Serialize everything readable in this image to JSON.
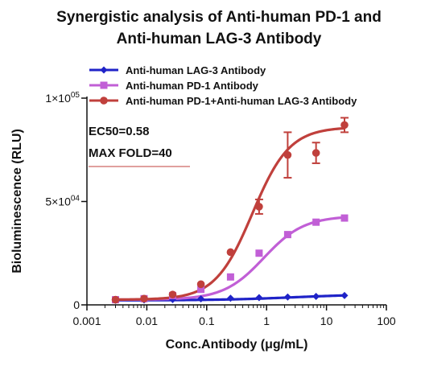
{
  "chart_data": {
    "type": "line",
    "title_lines": [
      "Synergistic analysis of Anti-human PD-1 and",
      "Anti-human LAG-3 Antibody"
    ],
    "xlabel": "Conc.Antibody (μg/mL)",
    "ylabel": "Bioluminescence (RLU)",
    "x_scale": "log",
    "xlim": [
      0.001,
      100
    ],
    "ylim": [
      0,
      100000
    ],
    "x_ticks": [
      {
        "value": 0.001,
        "label": "0.001"
      },
      {
        "value": 0.01,
        "label": "0.01"
      },
      {
        "value": 0.1,
        "label": "0.1"
      },
      {
        "value": 1,
        "label": "1"
      },
      {
        "value": 10,
        "label": "10"
      },
      {
        "value": 100,
        "label": "100"
      }
    ],
    "y_ticks": [
      {
        "value": 0,
        "base": "0",
        "exp": ""
      },
      {
        "value": 50000,
        "base": "5×10",
        "exp": "04"
      },
      {
        "value": 100000,
        "base": "1×10",
        "exp": "05"
      }
    ],
    "grid": false,
    "legend_position": "top",
    "annotations": [
      "EC50=0.58",
      "MAX FOLD=40"
    ],
    "x": [
      0.003,
      0.009,
      0.027,
      0.08,
      0.25,
      0.75,
      2.25,
      6.7,
      20
    ],
    "series": [
      {
        "name": "Anti-human LAG-3 Antibody",
        "color": "#1f23c8",
        "marker": "diamond",
        "values": [
          2200,
          2400,
          2600,
          2900,
          3200,
          3500,
          3800,
          4100,
          4500
        ],
        "errors": [
          0,
          0,
          0,
          0,
          0,
          0,
          0,
          0,
          0
        ],
        "fit": {
          "bottom": 2200,
          "top": 5200,
          "ec50": 3,
          "hill": 0.7
        }
      },
      {
        "name": "Anti-human PD-1 Antibody",
        "color": "#c15fd6",
        "marker": "square",
        "values": [
          2500,
          3000,
          4500,
          7500,
          13500,
          25000,
          34000,
          40000,
          42000
        ],
        "errors": [
          0,
          0,
          0,
          0,
          0,
          0,
          0,
          0,
          0
        ],
        "fit": {
          "bottom": 2500,
          "top": 43000,
          "ec50": 0.9,
          "hill": 1.3
        }
      },
      {
        "name": "Anti-human PD-1+Anti-human LAG-3 Antibody",
        "color": "#c0403c",
        "marker": "circle",
        "values": [
          2500,
          3000,
          5000,
          10000,
          25500,
          47500,
          72500,
          73500,
          87000
        ],
        "errors": [
          0,
          0,
          0,
          0,
          0,
          3500,
          11000,
          5000,
          3500
        ],
        "fit": {
          "bottom": 2500,
          "top": 86000,
          "ec50": 0.58,
          "hill": 1.4
        }
      }
    ]
  }
}
